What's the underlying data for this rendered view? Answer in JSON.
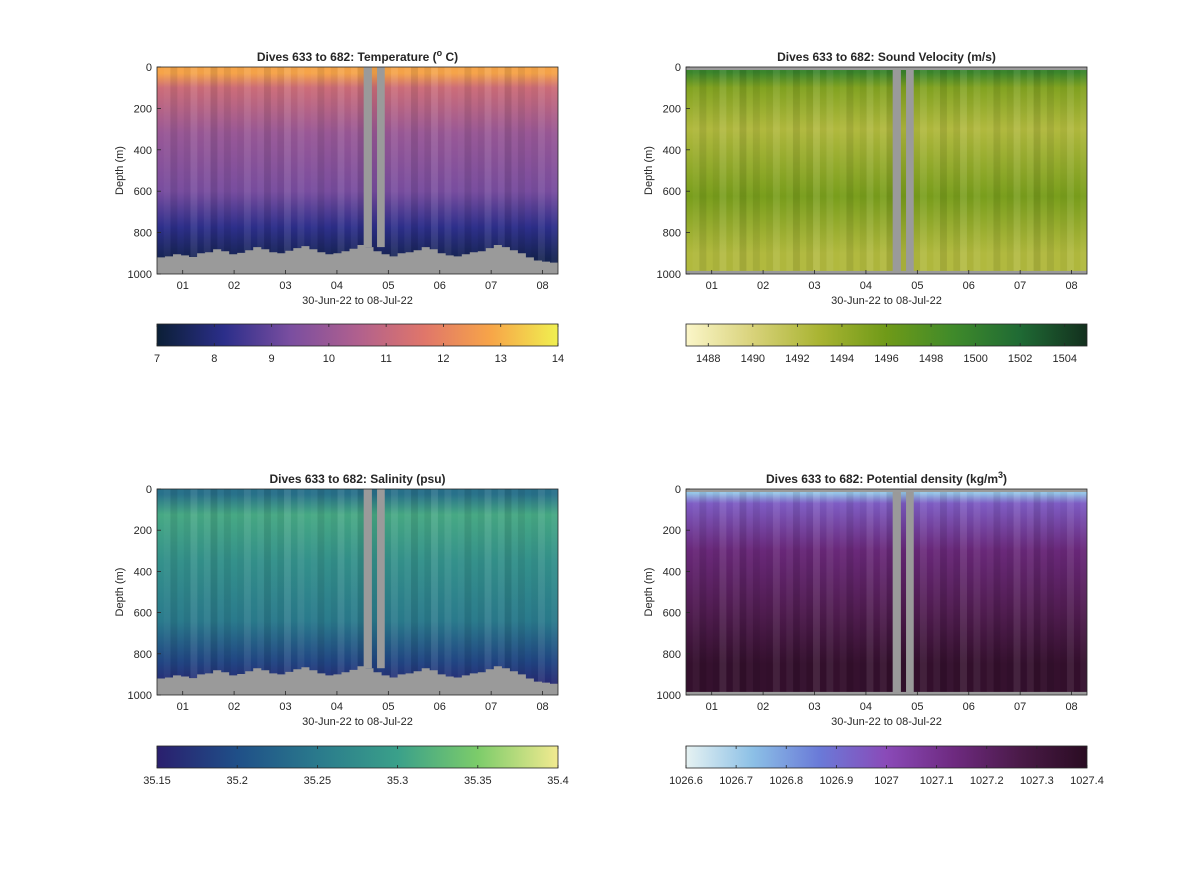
{
  "chart_data": [
    {
      "type": "heatmap",
      "title": "Dives 633 to 682: Temperature (",
      "title_sup": "o",
      "title_end": " C)",
      "xlabel": "30-Jun-22 to 08-Jul-22",
      "ylabel": "Depth (m)",
      "xticks": [
        "01",
        "02",
        "03",
        "04",
        "05",
        "06",
        "07",
        "08"
      ],
      "yticks": [
        "0",
        "200",
        "400",
        "600",
        "800",
        "1000"
      ],
      "ylim": [
        0,
        1000
      ],
      "xlim_days": [
        0.5,
        8.3
      ],
      "colorbar": {
        "ticks": [
          "7",
          "8",
          "9",
          "10",
          "11",
          "12",
          "13",
          "14"
        ],
        "range": [
          7,
          14
        ],
        "colors": [
          "#0b1f36",
          "#2b2e8a",
          "#7a4ea0",
          "#b0608e",
          "#e0766a",
          "#f7a548",
          "#f0f050"
        ]
      },
      "layers": [
        {
          "depth_top": 0,
          "depth_bot": 60,
          "value": 12.8
        },
        {
          "depth_top": 60,
          "depth_bot": 140,
          "value": 11.2
        },
        {
          "depth_top": 140,
          "depth_bot": 500,
          "value": 10.0
        },
        {
          "depth_top": 500,
          "depth_bot": 700,
          "value": 9.3
        },
        {
          "depth_top": 700,
          "depth_bot": 850,
          "value": 8.2
        },
        {
          "depth_top": 850,
          "depth_bot": 1000,
          "value": 7.4
        }
      ],
      "bottom_mask": true,
      "top_mask": false
    },
    {
      "type": "heatmap",
      "title": "Dives 633 to 682: Sound Velocity (m/s)",
      "title_sup": "",
      "title_end": "",
      "xlabel": "30-Jun-22 to 08-Jul-22",
      "ylabel": "Depth (m)",
      "xticks": [
        "01",
        "02",
        "03",
        "04",
        "05",
        "06",
        "07",
        "08"
      ],
      "yticks": [
        "0",
        "200",
        "400",
        "600",
        "800",
        "1000"
      ],
      "ylim": [
        0,
        1000
      ],
      "xlim_days": [
        0.5,
        8.3
      ],
      "colorbar": {
        "ticks": [
          "1488",
          "1490",
          "1492",
          "1494",
          "1496",
          "1498",
          "1500",
          "1502",
          "1504"
        ],
        "range": [
          1487,
          1505
        ],
        "colors": [
          "#fbf6c9",
          "#d8d27a",
          "#a9b432",
          "#6f9a18",
          "#3f8a2a",
          "#1f6a34",
          "#13301e"
        ]
      },
      "layers": [
        {
          "depth_top": 0,
          "depth_bot": 50,
          "value": 1499.5
        },
        {
          "depth_top": 50,
          "depth_bot": 150,
          "value": 1495.0
        },
        {
          "depth_top": 150,
          "depth_bot": 450,
          "value": 1492.5
        },
        {
          "depth_top": 450,
          "depth_bot": 800,
          "value": 1495.5
        },
        {
          "depth_top": 800,
          "depth_bot": 1000,
          "value": 1492.5
        }
      ],
      "bottom_mask": false,
      "top_mask": true
    },
    {
      "type": "heatmap",
      "title": "Dives 633 to 682: Salinity (psu)",
      "title_sup": "",
      "title_end": "",
      "xlabel": "30-Jun-22 to 08-Jul-22",
      "ylabel": "Depth (m)",
      "xticks": [
        "01",
        "02",
        "03",
        "04",
        "05",
        "06",
        "07",
        "08"
      ],
      "yticks": [
        "0",
        "200",
        "400",
        "600",
        "800",
        "1000"
      ],
      "ylim": [
        0,
        1000
      ],
      "xlim_days": [
        0.5,
        8.3
      ],
      "colorbar": {
        "ticks": [
          "35.15",
          "35.2",
          "35.25",
          "35.3",
          "35.35",
          "35.4"
        ],
        "range": [
          35.15,
          35.4
        ],
        "colors": [
          "#2a1f6e",
          "#1f4f88",
          "#2a7a8c",
          "#3aa08a",
          "#7ccc6a",
          "#f2ea90"
        ]
      },
      "layers": [
        {
          "depth_top": 0,
          "depth_bot": 50,
          "value": 35.24
        },
        {
          "depth_top": 50,
          "depth_bot": 200,
          "value": 35.31
        },
        {
          "depth_top": 200,
          "depth_bot": 500,
          "value": 35.28
        },
        {
          "depth_top": 500,
          "depth_bot": 780,
          "value": 35.25
        },
        {
          "depth_top": 780,
          "depth_bot": 900,
          "value": 35.19
        },
        {
          "depth_top": 900,
          "depth_bot": 1000,
          "value": 35.16
        }
      ],
      "bottom_mask": true,
      "top_mask": false
    },
    {
      "type": "heatmap",
      "title": "Dives 633 to 682: Potential density (kg/m",
      "title_sup": "3",
      "title_end": ")",
      "xlabel": "30-Jun-22 to 08-Jul-22",
      "ylabel": "Depth (m)",
      "xticks": [
        "01",
        "02",
        "03",
        "04",
        "05",
        "06",
        "07",
        "08"
      ],
      "yticks": [
        "0",
        "200",
        "400",
        "600",
        "800",
        "1000"
      ],
      "ylim": [
        0,
        1000
      ],
      "xlim_days": [
        0.5,
        8.3
      ],
      "colorbar": {
        "ticks": [
          "1026.6",
          "1026.7",
          "1026.8",
          "1026.9",
          "1027",
          "1027.1",
          "1027.2",
          "1027.3",
          "1027.4"
        ],
        "range": [
          1026.6,
          1027.4
        ],
        "colors": [
          "#e6f2f2",
          "#8cc0e6",
          "#6a7ad8",
          "#8a4ab8",
          "#6e2a80",
          "#4a1a48",
          "#2a0c22"
        ]
      },
      "layers": [
        {
          "depth_top": 0,
          "depth_bot": 40,
          "value": 1026.72
        },
        {
          "depth_top": 40,
          "depth_bot": 100,
          "value": 1026.95
        },
        {
          "depth_top": 100,
          "depth_bot": 500,
          "value": 1027.15
        },
        {
          "depth_top": 500,
          "depth_bot": 700,
          "value": 1027.25
        },
        {
          "depth_top": 700,
          "depth_bot": 1000,
          "value": 1027.36
        }
      ],
      "bottom_mask": false,
      "top_mask": true
    }
  ]
}
